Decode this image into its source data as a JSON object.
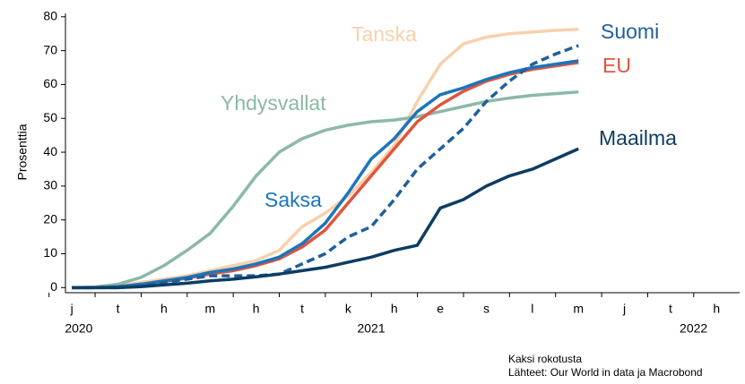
{
  "chart_data": {
    "type": "line",
    "ylabel": "Prosenttia",
    "categories": [
      "j",
      "t",
      "h",
      "m",
      "h",
      "t",
      "k",
      "h",
      "e",
      "s",
      "l",
      "m",
      "j",
      "t",
      "h"
    ],
    "year_labels": [
      "2020",
      "2021",
      "2022"
    ],
    "x": [
      0,
      0.5,
      1,
      1.5,
      2,
      2.5,
      3,
      3.5,
      4,
      4.5,
      5,
      5.5,
      6,
      6.5,
      7,
      7.5,
      8,
      8.5,
      9,
      9.5,
      10,
      10.5,
      11
    ],
    "xlim": [
      -0.14,
      14.5
    ],
    "ylim": [
      -1.5,
      81
    ],
    "yticks": [
      0,
      10,
      20,
      30,
      40,
      50,
      60,
      70,
      80
    ],
    "series": [
      {
        "name": "Tanska",
        "color": "#f9d0ac",
        "dashed": false,
        "values": [
          0,
          0,
          0.5,
          1.5,
          2.5,
          3.5,
          5,
          6.5,
          8,
          11,
          18,
          22,
          27,
          34,
          42,
          55,
          66,
          72,
          74,
          75,
          75.5,
          76,
          76.3
        ]
      },
      {
        "name": "Yhdysvallat",
        "color": "#8bb9a6",
        "dashed": false,
        "values": [
          0,
          0.2,
          1,
          3,
          6.5,
          11,
          16,
          24,
          33,
          40,
          44,
          46.5,
          48,
          49,
          49.5,
          50.5,
          52,
          53.5,
          55,
          56,
          56.8,
          57.3,
          57.8
        ]
      },
      {
        "name": "EU",
        "color": "#e0553c",
        "dashed": false,
        "values": [
          0,
          0,
          0.3,
          1,
          1.8,
          2.8,
          4,
          5,
          6.5,
          8.5,
          12,
          17,
          25,
          33,
          41,
          49,
          54,
          58,
          61,
          63,
          64.5,
          65.5,
          66.5
        ]
      },
      {
        "name": "Saksa",
        "color": "#1b75bc",
        "dashed": false,
        "values": [
          0,
          0,
          0.3,
          1,
          2,
          3,
          4.5,
          5.5,
          7,
          9,
          13,
          19,
          28,
          38,
          44,
          52,
          57,
          59,
          61.5,
          63.5,
          65,
          66,
          67
        ]
      },
      {
        "name": "Suomi",
        "color": "#1f5f9e",
        "dashed": true,
        "values": [
          0,
          0,
          0,
          0.5,
          1.5,
          2.5,
          3.5,
          3.5,
          3.5,
          4,
          7,
          10,
          15,
          18,
          26,
          35,
          41,
          47,
          55,
          61,
          66,
          69,
          71.5
        ]
      },
      {
        "name": "Maailma",
        "color": "#0d3d63",
        "dashed": false,
        "values": [
          0,
          0,
          0,
          0.3,
          0.8,
          1.3,
          2,
          2.5,
          3.2,
          4,
          5,
          6,
          7.5,
          9,
          11,
          12.5,
          23.5,
          26,
          30,
          33,
          35,
          38,
          41
        ]
      }
    ],
    "notes": [
      "Kaksi rokotusta",
      "Lähteet: Our World in data ja Macrobond"
    ]
  }
}
